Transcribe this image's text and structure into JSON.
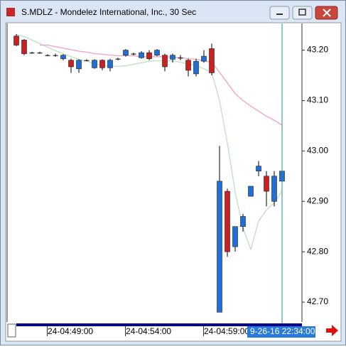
{
  "window": {
    "title": "S.MDLZ - Mondelez International, Inc., 30 Sec"
  },
  "chart_data": {
    "type": "candlestick",
    "up_color": "#1f6fd6",
    "down_color": "#cc1f1f",
    "categories": [
      null,
      null,
      null,
      null,
      "24-04:49:00",
      null,
      null,
      null,
      null,
      null,
      null,
      null,
      null,
      null,
      "24-04:54:00",
      null,
      null,
      null,
      null,
      null,
      null,
      null,
      null,
      null,
      "24-04:59:00",
      null,
      null,
      null,
      null,
      null,
      null,
      null,
      null,
      null,
      null
    ],
    "open": [
      43.228,
      43.22,
      43.195,
      43.195,
      43.19,
      43.19,
      43.183,
      43.18,
      43.163,
      43.18,
      43.165,
      43.18,
      43.165,
      43.183,
      43.19,
      43.193,
      43.185,
      43.195,
      43.19,
      43.19,
      43.182,
      43.185,
      43.18,
      43.153,
      43.178,
      43.203,
      42.68,
      42.92,
      42.81,
      42.85,
      42.91,
      42.96,
      42.95,
      42.9,
      42.94
    ],
    "high": [
      43.232,
      43.222,
      43.197,
      43.197,
      43.192,
      43.193,
      43.192,
      43.183,
      43.182,
      43.182,
      43.182,
      43.182,
      43.183,
      43.185,
      43.202,
      43.195,
      43.198,
      43.2,
      43.202,
      43.193,
      43.193,
      43.19,
      43.183,
      43.183,
      43.2,
      43.213,
      43.01,
      42.925,
      42.85,
      42.875,
      42.93,
      42.98,
      42.96,
      42.96,
      42.96
    ],
    "low": [
      43.208,
      43.19,
      43.193,
      43.193,
      43.188,
      43.187,
      43.18,
      43.155,
      43.155,
      43.178,
      43.163,
      43.16,
      43.158,
      43.18,
      43.187,
      43.19,
      43.183,
      43.18,
      43.188,
      43.158,
      43.175,
      43.18,
      43.148,
      43.148,
      43.175,
      43.15,
      42.68,
      42.79,
      42.8,
      42.84,
      42.91,
      42.95,
      42.89,
      42.89,
      42.93
    ],
    "close": [
      43.21,
      43.193,
      43.195,
      43.195,
      43.19,
      43.19,
      43.19,
      43.167,
      43.18,
      43.18,
      43.18,
      43.165,
      43.18,
      43.183,
      43.2,
      43.193,
      43.195,
      43.183,
      43.2,
      43.167,
      43.19,
      43.185,
      43.16,
      43.178,
      43.188,
      43.155,
      42.94,
      42.8,
      42.85,
      42.87,
      42.93,
      42.97,
      42.92,
      42.95,
      42.96
    ],
    "series": [
      {
        "color": "#bfe0bf",
        "values": [
          43.231,
          43.227,
          43.22,
          43.213,
          43.206,
          43.199,
          43.193,
          43.187,
          43.182,
          43.178,
          43.173,
          43.17,
          43.168,
          43.168,
          43.169,
          43.172,
          43.175,
          43.178,
          43.179,
          43.179,
          43.179,
          43.176,
          43.173,
          43.169,
          43.163,
          43.156,
          43.1,
          43.016,
          42.918,
          42.847,
          42.805,
          42.861,
          42.883,
          42.897,
          42.921
        ]
      },
      {
        "color": "#f0a0c8",
        "values": [
          null,
          null,
          null,
          43.21,
          43.21,
          43.207,
          43.204,
          43.201,
          43.198,
          43.196,
          43.193,
          43.192,
          43.19,
          43.189,
          43.189,
          43.189,
          43.187,
          43.187,
          43.187,
          43.187,
          43.186,
          43.185,
          43.183,
          43.182,
          43.179,
          43.176,
          43.156,
          43.135,
          43.114,
          43.1,
          43.089,
          43.079,
          43.069,
          43.061,
          43.051
        ]
      }
    ],
    "ylim": [
      42.662,
      43.253
    ],
    "yticks": [
      {
        "value": 43.2,
        "label": "43.20"
      },
      {
        "value": 43.1,
        "label": "43.10"
      },
      {
        "value": 43.0,
        "label": "43.00"
      },
      {
        "value": 42.9,
        "label": "42.90"
      },
      {
        "value": 42.8,
        "label": "42.80"
      },
      {
        "value": 42.7,
        "label": "42.70"
      }
    ],
    "cursor_label": "9-26-16 22:34:00"
  }
}
